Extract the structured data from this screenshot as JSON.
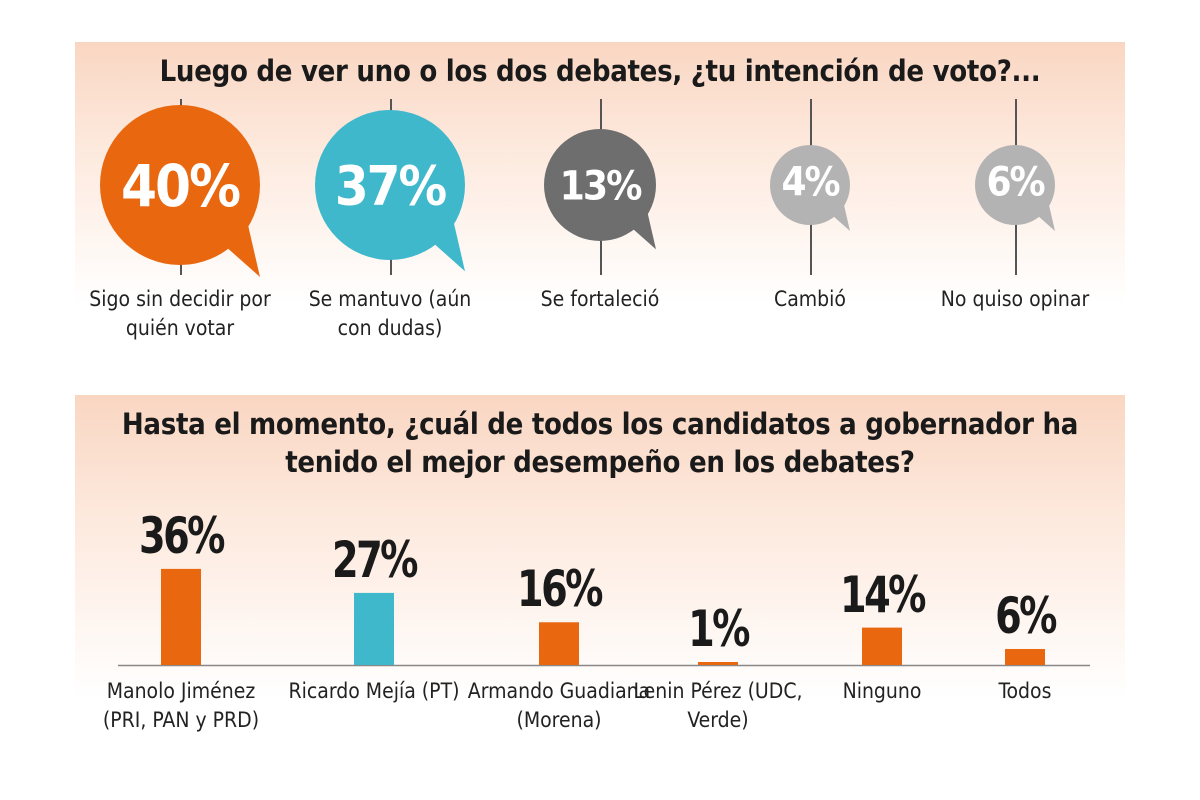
{
  "chart_data": [
    {
      "type": "bubble-percentages",
      "title": "Luego de ver uno o los dos debates, ¿tu intención de voto?...",
      "categories": [
        "Sigo sin decidir por quién votar",
        "Se mantuvo (aún con dudas)",
        "Se fortaleció",
        "Cambió",
        "No quiso opinar"
      ],
      "values": [
        40,
        37,
        13,
        4,
        6
      ],
      "value_labels": [
        "40%",
        "37%",
        "13%",
        "4%",
        "6%"
      ],
      "colors": [
        "#e8670f",
        "#3fb8cc",
        "#6e6e6e",
        "#b3b3b3",
        "#b3b3b3"
      ]
    },
    {
      "type": "bar",
      "title": "Hasta el momento, ¿cuál de todos los candidatos a gobernador ha tenido el mejor desempeño en los debates?",
      "categories": [
        "Manolo Jiménez (PRI, PAN y PRD)",
        "Ricardo Mejía (PT)",
        "Armando Guadiana (Morena)",
        "Lenin Pérez (UDC, Verde)",
        "Ninguno",
        "Todos"
      ],
      "values": [
        36,
        27,
        16,
        1,
        14,
        6
      ],
      "value_labels": [
        "36%",
        "27%",
        "16%",
        "1%",
        "14%",
        "6%"
      ],
      "colors": [
        "#e8670f",
        "#3fb8cc",
        "#e8670f",
        "#e8670f",
        "#e8670f",
        "#e8670f"
      ]
    }
  ]
}
